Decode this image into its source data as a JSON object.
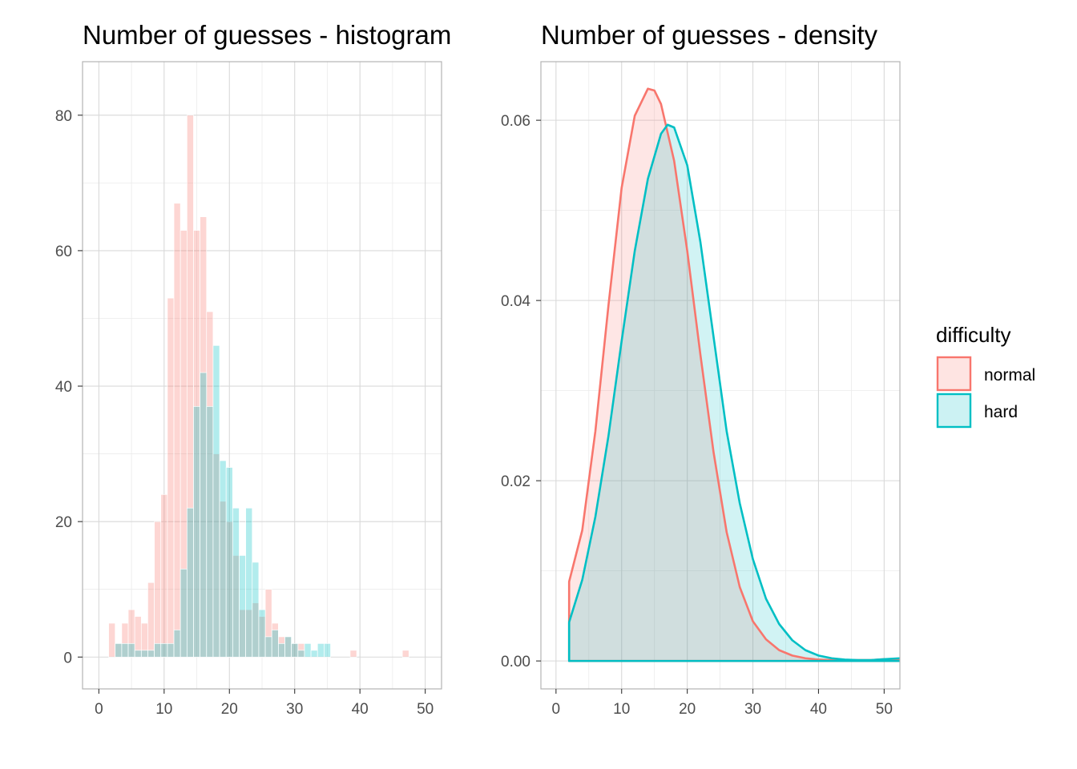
{
  "colors": {
    "normal": "#F8766D",
    "hard": "#00BFC4",
    "grid": "#d9d9d9",
    "panel_border": "#b3b3b3"
  },
  "legend": {
    "title": "difficulty",
    "items": [
      {
        "key": "normal",
        "label": "normal",
        "color": "#F8766D"
      },
      {
        "key": "hard",
        "label": "hard",
        "color": "#00BFC4"
      }
    ]
  },
  "chart_data": [
    {
      "type": "bar",
      "title": "Number of guesses - histogram",
      "xlabel": "",
      "ylabel": "",
      "xlim": [
        -2.5,
        52.5
      ],
      "ylim": [
        -4.7,
        87.9
      ],
      "xticks": [
        0,
        10,
        20,
        30,
        40,
        50
      ],
      "yticks": [
        0,
        20,
        40,
        60,
        80
      ],
      "grid": true,
      "overlay": true,
      "bin_width": 1,
      "series": [
        {
          "name": "normal",
          "x": [
            2,
            3,
            4,
            5,
            6,
            7,
            8,
            9,
            10,
            11,
            12,
            13,
            14,
            15,
            16,
            17,
            18,
            19,
            20,
            21,
            22,
            23,
            24,
            25,
            26,
            27,
            28,
            29,
            30,
            31,
            39,
            47
          ],
          "values": [
            5,
            2,
            5,
            7,
            6,
            5,
            11,
            20,
            24,
            53,
            67,
            63,
            80,
            63,
            65,
            51,
            30,
            23,
            20,
            15,
            7,
            7,
            8,
            6,
            10,
            5,
            3,
            3,
            2,
            2,
            1,
            1
          ]
        },
        {
          "name": "hard",
          "x": [
            3,
            4,
            5,
            6,
            7,
            8,
            9,
            10,
            11,
            12,
            13,
            14,
            15,
            16,
            17,
            18,
            19,
            20,
            21,
            22,
            23,
            24,
            25,
            26,
            27,
            28,
            29,
            30,
            31,
            32,
            33,
            34,
            35
          ],
          "values": [
            2,
            2,
            2,
            1,
            1,
            1,
            2,
            2,
            2,
            4,
            13,
            22,
            37,
            42,
            37,
            46,
            29,
            28,
            22,
            15,
            22,
            14,
            7,
            3,
            4,
            2,
            3,
            2,
            1,
            2,
            1,
            2,
            2
          ]
        }
      ]
    },
    {
      "type": "area",
      "title": "Number of guesses - density",
      "xlabel": "",
      "ylabel": "",
      "xlim": [
        -2.3,
        52.4
      ],
      "ylim": [
        -0.0031,
        0.0665
      ],
      "xticks": [
        0,
        10,
        20,
        30,
        40,
        50
      ],
      "yticks": [
        0,
        0.02,
        0.04,
        0.06
      ],
      "ytick_labels": [
        "0.00",
        "0.02",
        "0.04",
        "0.06"
      ],
      "grid": true,
      "series": [
        {
          "name": "normal",
          "x": [
            2,
            4,
            6,
            8,
            10,
            12,
            14,
            15,
            16,
            18,
            20,
            22,
            24,
            26,
            28,
            30,
            32,
            34,
            36,
            38,
            40,
            42,
            44,
            46,
            48,
            50,
            52.4
          ],
          "values": [
            0.0088,
            0.0145,
            0.0255,
            0.0395,
            0.0525,
            0.0605,
            0.0635,
            0.0633,
            0.0618,
            0.0555,
            0.0455,
            0.034,
            0.0232,
            0.0143,
            0.0082,
            0.0044,
            0.0024,
            0.0012,
            0.0006,
            0.0003,
            0.00015,
            0.0001,
            0.0001,
            0.0001,
            0.0001,
            0.0002,
            0.0002
          ]
        },
        {
          "name": "hard",
          "x": [
            2,
            4,
            6,
            8,
            10,
            12,
            14,
            16,
            17,
            18,
            20,
            22,
            24,
            26,
            28,
            30,
            32,
            34,
            36,
            38,
            40,
            42,
            44,
            46,
            48,
            50,
            52.4
          ],
          "values": [
            0.0043,
            0.009,
            0.016,
            0.025,
            0.0355,
            0.0455,
            0.0535,
            0.0585,
            0.0595,
            0.0592,
            0.055,
            0.0465,
            0.036,
            0.0255,
            0.0175,
            0.0113,
            0.0069,
            0.0041,
            0.0023,
            0.0012,
            0.0006,
            0.0003,
            0.00015,
            0.0001,
            0.0001,
            0.0002,
            0.0003
          ]
        }
      ]
    }
  ]
}
